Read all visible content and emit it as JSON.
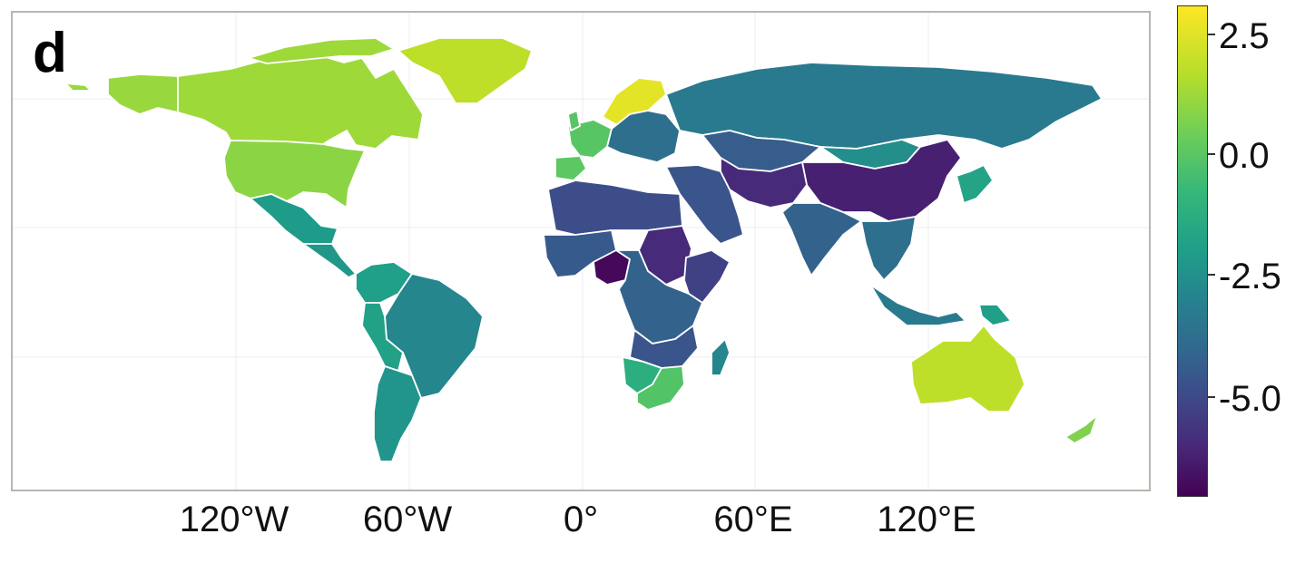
{
  "panel": {
    "letter": "d"
  },
  "longitude_labels": [
    "120°W",
    "60°W",
    "0°",
    "60°E",
    "120°E"
  ],
  "colorbar": {
    "ticks": [
      {
        "label": "2.5",
        "value": 2.5
      },
      {
        "label": "0.0",
        "value": 0.0
      },
      {
        "label": "-2.5",
        "value": -2.5
      },
      {
        "label": "-5.0",
        "value": -5.0
      }
    ],
    "range": [
      -7.2,
      3.0
    ],
    "palette": "viridis",
    "colors": [
      "#440154",
      "#482878",
      "#3e4989",
      "#31688e",
      "#26828e",
      "#1f9e89",
      "#35b779",
      "#6ece58",
      "#b5de2b",
      "#fde725"
    ]
  },
  "regions": [
    {
      "name": "alaska",
      "value": 1.4
    },
    {
      "name": "canada",
      "value": 1.5
    },
    {
      "name": "greenland",
      "value": 2.0
    },
    {
      "name": "united-states",
      "value": 1.2
    },
    {
      "name": "mexico",
      "value": -1.6
    },
    {
      "name": "central-america",
      "value": -1.8
    },
    {
      "name": "colombia-venezuela",
      "value": -1.5
    },
    {
      "name": "brazil",
      "value": -2.5
    },
    {
      "name": "peru-bolivia",
      "value": -1.4
    },
    {
      "name": "argentina-chile",
      "value": -1.9
    },
    {
      "name": "iberia",
      "value": 0.4
    },
    {
      "name": "western-europe",
      "value": 0.3
    },
    {
      "name": "scandinavia",
      "value": 2.6
    },
    {
      "name": "eastern-europe",
      "value": -3.5
    },
    {
      "name": "russia",
      "value": -3.0
    },
    {
      "name": "kazakhstan",
      "value": -4.2
    },
    {
      "name": "mongolia",
      "value": -2.2
    },
    {
      "name": "china",
      "value": -6.3
    },
    {
      "name": "middle-east",
      "value": -4.5
    },
    {
      "name": "iran-pakistan",
      "value": -6.0
    },
    {
      "name": "india",
      "value": -4.0
    },
    {
      "name": "southeast-asia",
      "value": -3.5
    },
    {
      "name": "indonesia",
      "value": -3.0
    },
    {
      "name": "japan-korea",
      "value": -1.3
    },
    {
      "name": "north-africa",
      "value": -4.8
    },
    {
      "name": "west-africa",
      "value": -4.3
    },
    {
      "name": "nigeria",
      "value": -7.0
    },
    {
      "name": "sudan",
      "value": -6.0
    },
    {
      "name": "horn-of-africa",
      "value": -5.2
    },
    {
      "name": "central-africa",
      "value": -4.0
    },
    {
      "name": "southern-africa",
      "value": -4.5
    },
    {
      "name": "namibia-botswana",
      "value": -0.8
    },
    {
      "name": "south-africa",
      "value": 0.2
    },
    {
      "name": "madagascar",
      "value": -2.5
    },
    {
      "name": "australia",
      "value": 2.0
    },
    {
      "name": "new-zealand",
      "value": 1.0
    },
    {
      "name": "papua-new-guinea",
      "value": -1.5
    }
  ]
}
